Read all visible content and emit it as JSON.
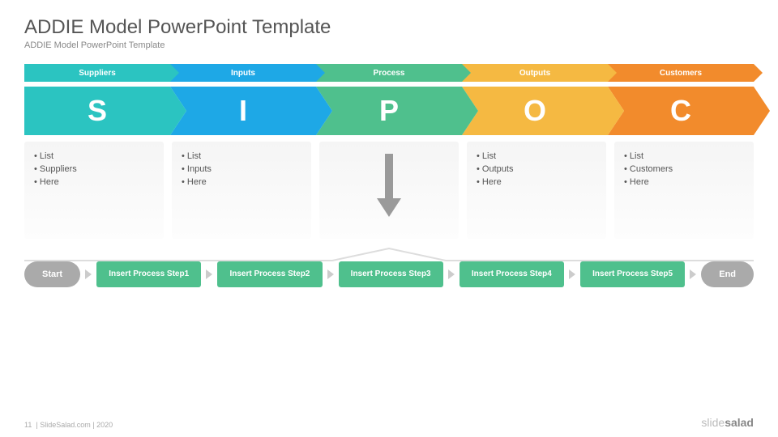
{
  "header": {
    "title": "ADDIE Model PowerPoint Template",
    "subtitle": "ADDIE Model PowerPoint Template"
  },
  "colors": {
    "c1": "#2bc4c1",
    "c2": "#1ea8e6",
    "c3": "#4fc08d",
    "c4": "#f5b942",
    "c5": "#f28b2c",
    "grey": "#aaaaaa",
    "arrow": "#9a9a9a"
  },
  "topbar": [
    {
      "label": "Suppliers",
      "letter": "S",
      "ck": "c1"
    },
    {
      "label": "Inputs",
      "letter": "I",
      "ck": "c2"
    },
    {
      "label": "Process",
      "letter": "P",
      "ck": "c3"
    },
    {
      "label": "Outputs",
      "letter": "O",
      "ck": "c4"
    },
    {
      "label": "Customers",
      "letter": "C",
      "ck": "c5"
    }
  ],
  "cards": [
    {
      "items": [
        "List",
        "Suppliers",
        "Here"
      ]
    },
    {
      "items": [
        "List",
        "Inputs",
        "Here"
      ]
    },
    {
      "items": [],
      "arrow": true
    },
    {
      "items": [
        "List",
        "Outputs",
        "Here"
      ]
    },
    {
      "items": [
        "List",
        "Customers",
        "Here"
      ]
    }
  ],
  "process": {
    "start": "Start",
    "end": "End",
    "steps": [
      "Insert Process Step1",
      "Insert Process Step2",
      "Insert Process Step3",
      "Insert Process Step4",
      "Insert Process Step5"
    ],
    "step_color": "#4fc08d"
  },
  "footer": {
    "page": "11",
    "text": "| SlideSalad.com | 2020",
    "logo_light": "slide",
    "logo_bold": "salad"
  }
}
